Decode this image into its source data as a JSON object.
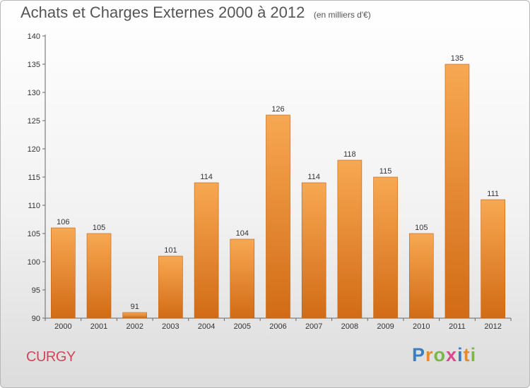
{
  "title": "Achats et Charges Externes 2000 à 2012",
  "unit": "(en milliers d'€)",
  "city": "CURGY",
  "logo": {
    "letters": [
      "P",
      "r",
      "o",
      "x",
      "i",
      "t",
      "i"
    ],
    "colors": [
      "#3a7fc4",
      "#e8892b",
      "#7ab648",
      "#d94a8c",
      "#3a7fc4",
      "#e8892b",
      "#7ab648"
    ]
  },
  "colors": {
    "bar_top": "#f8a852",
    "bar_bottom": "#d26b15",
    "title": "#555555",
    "city": "#d0455a"
  },
  "chart_data": {
    "type": "bar",
    "categories": [
      "2000",
      "2001",
      "2002",
      "2003",
      "2004",
      "2005",
      "2006",
      "2007",
      "2008",
      "2009",
      "2010",
      "2011",
      "2012"
    ],
    "values": [
      106,
      105,
      91,
      101,
      114,
      104,
      126,
      114,
      118,
      115,
      105,
      135,
      111
    ],
    "title": "Achats et Charges Externes 2000 à 2012",
    "ylim": [
      90,
      140
    ],
    "yticks": [
      90,
      95,
      100,
      105,
      110,
      115,
      120,
      125,
      130,
      135,
      140
    ],
    "grid": false
  }
}
